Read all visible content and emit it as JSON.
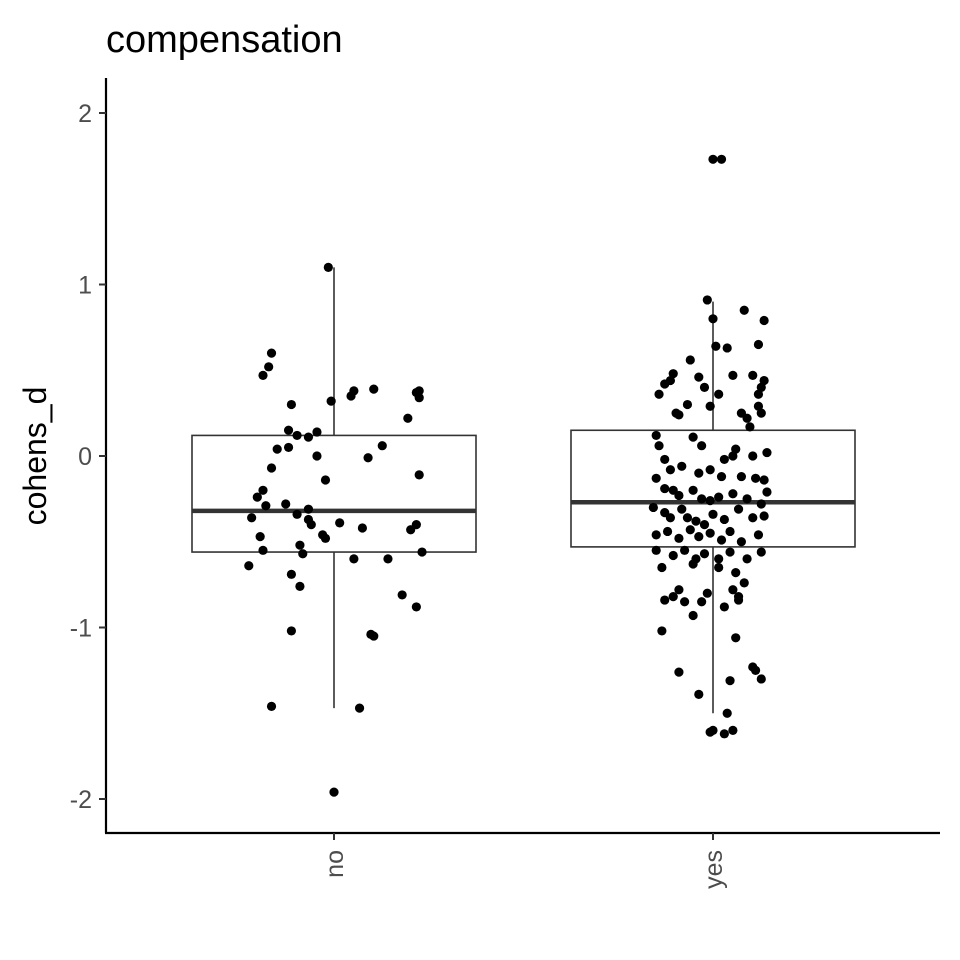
{
  "chart_data": {
    "type": "boxplot",
    "title": "compensation",
    "xlabel": "",
    "ylabel": "cohens_d",
    "categories": [
      "no",
      "yes"
    ],
    "ylim": [
      -2.2,
      2.2
    ],
    "yticks": [
      -2,
      -1,
      0,
      1,
      2
    ],
    "yticklabels": [
      "-2",
      "-1",
      "0",
      "1",
      "2"
    ],
    "grid": false,
    "legend": "none",
    "boxes": [
      {
        "category": "no",
        "whisker_low": -1.47,
        "q1": -0.56,
        "median": -0.32,
        "q3": 0.12,
        "whisker_high": 1.1
      },
      {
        "category": "yes",
        "whisker_low": -1.5,
        "q1": -0.53,
        "median": -0.27,
        "q3": 0.15,
        "whisker_high": 0.9
      }
    ],
    "points": [
      {
        "category": "no",
        "offset": -0.02,
        "y": 1.1
      },
      {
        "category": "no",
        "offset": -0.22,
        "y": 0.6
      },
      {
        "category": "no",
        "offset": -0.25,
        "y": 0.47
      },
      {
        "category": "no",
        "offset": -0.23,
        "y": 0.52
      },
      {
        "category": "no",
        "offset": -0.15,
        "y": 0.3
      },
      {
        "category": "no",
        "offset": -0.16,
        "y": 0.15
      },
      {
        "category": "no",
        "offset": -0.2,
        "y": 0.04
      },
      {
        "category": "no",
        "offset": -0.22,
        "y": -0.07
      },
      {
        "category": "no",
        "offset": -0.25,
        "y": -0.2
      },
      {
        "category": "no",
        "offset": -0.27,
        "y": -0.24
      },
      {
        "category": "no",
        "offset": -0.24,
        "y": -0.29
      },
      {
        "category": "no",
        "offset": -0.29,
        "y": -0.36
      },
      {
        "category": "no",
        "offset": -0.26,
        "y": -0.47
      },
      {
        "category": "no",
        "offset": -0.25,
        "y": -0.55
      },
      {
        "category": "no",
        "offset": -0.3,
        "y": -0.64
      },
      {
        "category": "no",
        "offset": -0.15,
        "y": -0.69
      },
      {
        "category": "no",
        "offset": -0.12,
        "y": -0.76
      },
      {
        "category": "no",
        "offset": -0.15,
        "y": -1.02
      },
      {
        "category": "no",
        "offset": -0.22,
        "y": -1.46
      },
      {
        "category": "no",
        "offset": 0.0,
        "y": -1.96
      },
      {
        "category": "no",
        "offset": 0.09,
        "y": -1.47
      },
      {
        "category": "no",
        "offset": 0.13,
        "y": -1.04
      },
      {
        "category": "no",
        "offset": 0.14,
        "y": -1.05
      },
      {
        "category": "no",
        "offset": 0.24,
        "y": -0.81
      },
      {
        "category": "no",
        "offset": 0.29,
        "y": -0.88
      },
      {
        "category": "no",
        "offset": 0.31,
        "y": -0.56
      },
      {
        "category": "no",
        "offset": 0.29,
        "y": -0.4
      },
      {
        "category": "no",
        "offset": 0.27,
        "y": -0.43
      },
      {
        "category": "no",
        "offset": 0.19,
        "y": -0.6
      },
      {
        "category": "no",
        "offset": 0.07,
        "y": -0.6
      },
      {
        "category": "no",
        "offset": 0.1,
        "y": -0.42
      },
      {
        "category": "no",
        "offset": 0.02,
        "y": -0.39
      },
      {
        "category": "no",
        "offset": -0.03,
        "y": -0.48
      },
      {
        "category": "no",
        "offset": -0.04,
        "y": -0.46
      },
      {
        "category": "no",
        "offset": -0.08,
        "y": -0.4
      },
      {
        "category": "no",
        "offset": -0.12,
        "y": -0.52
      },
      {
        "category": "no",
        "offset": -0.11,
        "y": -0.57
      },
      {
        "category": "no",
        "offset": -0.09,
        "y": -0.37
      },
      {
        "category": "no",
        "offset": -0.03,
        "y": -0.14
      },
      {
        "category": "no",
        "offset": -0.09,
        "y": -0.31
      },
      {
        "category": "no",
        "offset": -0.13,
        "y": -0.34
      },
      {
        "category": "no",
        "offset": -0.17,
        "y": -0.28
      },
      {
        "category": "no",
        "offset": -0.06,
        "y": 0.0
      },
      {
        "category": "no",
        "offset": -0.13,
        "y": 0.12
      },
      {
        "category": "no",
        "offset": -0.16,
        "y": 0.05
      },
      {
        "category": "no",
        "offset": -0.09,
        "y": 0.11
      },
      {
        "category": "no",
        "offset": -0.01,
        "y": 0.32
      },
      {
        "category": "no",
        "offset": 0.06,
        "y": 0.35
      },
      {
        "category": "no",
        "offset": 0.07,
        "y": 0.38
      },
      {
        "category": "no",
        "offset": 0.14,
        "y": 0.39
      },
      {
        "category": "no",
        "offset": 0.26,
        "y": 0.22
      },
      {
        "category": "no",
        "offset": 0.3,
        "y": 0.34
      },
      {
        "category": "no",
        "offset": 0.29,
        "y": 0.37
      },
      {
        "category": "no",
        "offset": 0.3,
        "y": 0.38
      },
      {
        "category": "no",
        "offset": 0.17,
        "y": 0.06
      },
      {
        "category": "no",
        "offset": 0.3,
        "y": -0.11
      },
      {
        "category": "no",
        "offset": 0.12,
        "y": -0.01
      },
      {
        "category": "no",
        "offset": -0.06,
        "y": 0.14
      },
      {
        "category": "yes",
        "offset": 0.0,
        "y": 1.73
      },
      {
        "category": "yes",
        "offset": 0.03,
        "y": 1.73
      },
      {
        "category": "yes",
        "offset": -0.02,
        "y": 0.91
      },
      {
        "category": "yes",
        "offset": 0.0,
        "y": 0.8
      },
      {
        "category": "yes",
        "offset": 0.11,
        "y": 0.85
      },
      {
        "category": "yes",
        "offset": 0.18,
        "y": 0.79
      },
      {
        "category": "yes",
        "offset": 0.16,
        "y": 0.65
      },
      {
        "category": "yes",
        "offset": 0.05,
        "y": 0.63
      },
      {
        "category": "yes",
        "offset": 0.01,
        "y": 0.64
      },
      {
        "category": "yes",
        "offset": -0.08,
        "y": 0.56
      },
      {
        "category": "yes",
        "offset": -0.05,
        "y": 0.46
      },
      {
        "category": "yes",
        "offset": -0.14,
        "y": 0.48
      },
      {
        "category": "yes",
        "offset": -0.15,
        "y": 0.44
      },
      {
        "category": "yes",
        "offset": -0.17,
        "y": 0.42
      },
      {
        "category": "yes",
        "offset": -0.19,
        "y": 0.36
      },
      {
        "category": "yes",
        "offset": -0.03,
        "y": 0.4
      },
      {
        "category": "yes",
        "offset": 0.02,
        "y": 0.36
      },
      {
        "category": "yes",
        "offset": 0.07,
        "y": 0.47
      },
      {
        "category": "yes",
        "offset": 0.14,
        "y": 0.47
      },
      {
        "category": "yes",
        "offset": 0.18,
        "y": 0.44
      },
      {
        "category": "yes",
        "offset": 0.17,
        "y": 0.4
      },
      {
        "category": "yes",
        "offset": 0.16,
        "y": 0.36
      },
      {
        "category": "yes",
        "offset": 0.16,
        "y": 0.29
      },
      {
        "category": "yes",
        "offset": 0.17,
        "y": 0.25
      },
      {
        "category": "yes",
        "offset": 0.1,
        "y": 0.25
      },
      {
        "category": "yes",
        "offset": 0.12,
        "y": 0.22
      },
      {
        "category": "yes",
        "offset": 0.13,
        "y": 0.17
      },
      {
        "category": "yes",
        "offset": -0.01,
        "y": 0.29
      },
      {
        "category": "yes",
        "offset": -0.09,
        "y": 0.3
      },
      {
        "category": "yes",
        "offset": -0.13,
        "y": 0.25
      },
      {
        "category": "yes",
        "offset": -0.12,
        "y": 0.24
      },
      {
        "category": "yes",
        "offset": -0.2,
        "y": 0.12
      },
      {
        "category": "yes",
        "offset": -0.19,
        "y": 0.06
      },
      {
        "category": "yes",
        "offset": -0.07,
        "y": 0.11
      },
      {
        "category": "yes",
        "offset": -0.04,
        "y": 0.06
      },
      {
        "category": "yes",
        "offset": 0.08,
        "y": 0.04
      },
      {
        "category": "yes",
        "offset": 0.07,
        "y": 0.0
      },
      {
        "category": "yes",
        "offset": 0.04,
        "y": -0.02
      },
      {
        "category": "yes",
        "offset": 0.14,
        "y": 0.0
      },
      {
        "category": "yes",
        "offset": 0.19,
        "y": 0.02
      },
      {
        "category": "yes",
        "offset": -0.17,
        "y": -0.02
      },
      {
        "category": "yes",
        "offset": -0.15,
        "y": -0.08
      },
      {
        "category": "yes",
        "offset": -0.11,
        "y": -0.06
      },
      {
        "category": "yes",
        "offset": -0.05,
        "y": -0.1
      },
      {
        "category": "yes",
        "offset": -0.01,
        "y": -0.08
      },
      {
        "category": "yes",
        "offset": 0.03,
        "y": -0.12
      },
      {
        "category": "yes",
        "offset": 0.1,
        "y": -0.12
      },
      {
        "category": "yes",
        "offset": 0.15,
        "y": -0.13
      },
      {
        "category": "yes",
        "offset": 0.18,
        "y": -0.14
      },
      {
        "category": "yes",
        "offset": -0.2,
        "y": -0.13
      },
      {
        "category": "yes",
        "offset": -0.17,
        "y": -0.19
      },
      {
        "category": "yes",
        "offset": -0.14,
        "y": -0.2
      },
      {
        "category": "yes",
        "offset": -0.12,
        "y": -0.23
      },
      {
        "category": "yes",
        "offset": -0.07,
        "y": -0.2
      },
      {
        "category": "yes",
        "offset": -0.04,
        "y": -0.25
      },
      {
        "category": "yes",
        "offset": -0.01,
        "y": -0.26
      },
      {
        "category": "yes",
        "offset": 0.02,
        "y": -0.24
      },
      {
        "category": "yes",
        "offset": 0.07,
        "y": -0.22
      },
      {
        "category": "yes",
        "offset": 0.12,
        "y": -0.25
      },
      {
        "category": "yes",
        "offset": 0.17,
        "y": -0.28
      },
      {
        "category": "yes",
        "offset": 0.19,
        "y": -0.21
      },
      {
        "category": "yes",
        "offset": -0.21,
        "y": -0.3
      },
      {
        "category": "yes",
        "offset": -0.17,
        "y": -0.33
      },
      {
        "category": "yes",
        "offset": -0.15,
        "y": -0.36
      },
      {
        "category": "yes",
        "offset": -0.11,
        "y": -0.31
      },
      {
        "category": "yes",
        "offset": -0.09,
        "y": -0.36
      },
      {
        "category": "yes",
        "offset": -0.06,
        "y": -0.38
      },
      {
        "category": "yes",
        "offset": -0.03,
        "y": -0.4
      },
      {
        "category": "yes",
        "offset": 0.0,
        "y": -0.34
      },
      {
        "category": "yes",
        "offset": 0.04,
        "y": -0.37
      },
      {
        "category": "yes",
        "offset": 0.09,
        "y": -0.31
      },
      {
        "category": "yes",
        "offset": 0.14,
        "y": -0.36
      },
      {
        "category": "yes",
        "offset": 0.18,
        "y": -0.35
      },
      {
        "category": "yes",
        "offset": -0.2,
        "y": -0.46
      },
      {
        "category": "yes",
        "offset": -0.16,
        "y": -0.44
      },
      {
        "category": "yes",
        "offset": -0.12,
        "y": -0.48
      },
      {
        "category": "yes",
        "offset": -0.08,
        "y": -0.43
      },
      {
        "category": "yes",
        "offset": -0.05,
        "y": -0.47
      },
      {
        "category": "yes",
        "offset": -0.01,
        "y": -0.45
      },
      {
        "category": "yes",
        "offset": 0.03,
        "y": -0.49
      },
      {
        "category": "yes",
        "offset": 0.06,
        "y": -0.44
      },
      {
        "category": "yes",
        "offset": 0.1,
        "y": -0.5
      },
      {
        "category": "yes",
        "offset": 0.16,
        "y": -0.46
      },
      {
        "category": "yes",
        "offset": -0.2,
        "y": -0.55
      },
      {
        "category": "yes",
        "offset": -0.14,
        "y": -0.58
      },
      {
        "category": "yes",
        "offset": -0.1,
        "y": -0.55
      },
      {
        "category": "yes",
        "offset": -0.06,
        "y": -0.6
      },
      {
        "category": "yes",
        "offset": -0.03,
        "y": -0.57
      },
      {
        "category": "yes",
        "offset": 0.02,
        "y": -0.6
      },
      {
        "category": "yes",
        "offset": 0.06,
        "y": -0.56
      },
      {
        "category": "yes",
        "offset": 0.12,
        "y": -0.6
      },
      {
        "category": "yes",
        "offset": 0.17,
        "y": -0.56
      },
      {
        "category": "yes",
        "offset": -0.18,
        "y": -0.65
      },
      {
        "category": "yes",
        "offset": -0.07,
        "y": -0.63
      },
      {
        "category": "yes",
        "offset": 0.02,
        "y": -0.65
      },
      {
        "category": "yes",
        "offset": 0.08,
        "y": -0.68
      },
      {
        "category": "yes",
        "offset": 0.07,
        "y": -0.78
      },
      {
        "category": "yes",
        "offset": -0.02,
        "y": -0.8
      },
      {
        "category": "yes",
        "offset": 0.11,
        "y": -0.74
      },
      {
        "category": "yes",
        "offset": -0.12,
        "y": -0.78
      },
      {
        "category": "yes",
        "offset": -0.14,
        "y": -0.82
      },
      {
        "category": "yes",
        "offset": -0.1,
        "y": -0.85
      },
      {
        "category": "yes",
        "offset": -0.17,
        "y": -0.84
      },
      {
        "category": "yes",
        "offset": -0.04,
        "y": -0.85
      },
      {
        "category": "yes",
        "offset": -0.07,
        "y": -0.93
      },
      {
        "category": "yes",
        "offset": 0.04,
        "y": -0.88
      },
      {
        "category": "yes",
        "offset": 0.09,
        "y": -0.82
      },
      {
        "category": "yes",
        "offset": 0.09,
        "y": -0.84
      },
      {
        "category": "yes",
        "offset": -0.18,
        "y": -1.02
      },
      {
        "category": "yes",
        "offset": 0.08,
        "y": -1.06
      },
      {
        "category": "yes",
        "offset": -0.12,
        "y": -1.26
      },
      {
        "category": "yes",
        "offset": -0.05,
        "y": -1.39
      },
      {
        "category": "yes",
        "offset": 0.06,
        "y": -1.31
      },
      {
        "category": "yes",
        "offset": 0.14,
        "y": -1.23
      },
      {
        "category": "yes",
        "offset": 0.15,
        "y": -1.25
      },
      {
        "category": "yes",
        "offset": 0.17,
        "y": -1.3
      },
      {
        "category": "yes",
        "offset": 0.05,
        "y": -1.5
      },
      {
        "category": "yes",
        "offset": 0.0,
        "y": -1.6
      },
      {
        "category": "yes",
        "offset": 0.04,
        "y": -1.62
      },
      {
        "category": "yes",
        "offset": 0.07,
        "y": -1.6
      },
      {
        "category": "yes",
        "offset": -0.01,
        "y": -1.61
      }
    ]
  }
}
